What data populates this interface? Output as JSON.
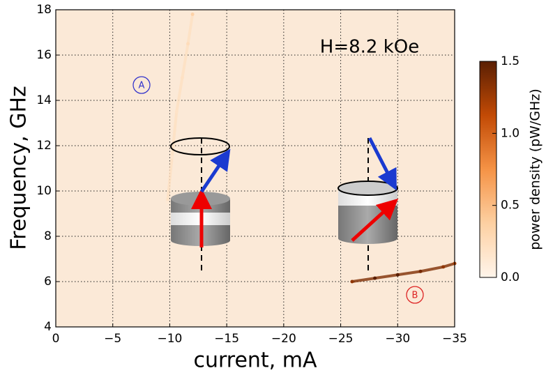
{
  "chart_data": {
    "type": "heatmap",
    "xlabel": "current, mA",
    "ylabel": "Frequency, GHz",
    "xlim": [
      0,
      -35
    ],
    "ylim": [
      4,
      18
    ],
    "xticks": [
      0,
      {
        "value": -5,
        "label": "−5"
      },
      {
        "value": -10,
        "label": "−10"
      },
      {
        "value": -15,
        "label": "−15"
      },
      {
        "value": -20,
        "label": "−20"
      },
      {
        "value": -25,
        "label": "−25"
      },
      {
        "value": -30,
        "label": "−30"
      },
      {
        "value": -35,
        "label": "−35"
      }
    ],
    "yticks": [
      4,
      6,
      8,
      10,
      12,
      14,
      16,
      18
    ],
    "grid": true,
    "colorbar": {
      "label": "power density (pW/GHz)",
      "lim": [
        0,
        1.5
      ],
      "ticks": [
        {
          "value": 0,
          "label": "0.0"
        },
        {
          "value": 0.5,
          "label": "0.5"
        },
        {
          "value": 1.0,
          "label": "1.0"
        },
        {
          "value": 1.5,
          "label": "1.5"
        }
      ],
      "colors": [
        "#fff5eb",
        "#fdd0a2",
        "#f59346",
        "#c24a05",
        "#5a1f03"
      ]
    },
    "annotations": [
      "H=8.2 kOe",
      "A",
      "B"
    ],
    "series": [
      {
        "name": "A",
        "color": "#3333cc",
        "x": [
          -12,
          -11.6,
          -11.1,
          -10.6,
          -10.2,
          -9.8
        ],
        "y": [
          17.8,
          16.5,
          15,
          13.5,
          11.5,
          9.5
        ],
        "values": [
          0.35,
          0.25,
          0.2,
          0.18,
          0.15,
          0.12
        ]
      },
      {
        "name": "B",
        "color": "#dd2222",
        "x": [
          -26,
          -28,
          -30,
          -32,
          -34,
          -35
        ],
        "y": [
          6,
          6.15,
          6.3,
          6.45,
          6.65,
          6.8
        ],
        "values": [
          1.3,
          1.5,
          1.5,
          1.4,
          1.3,
          1.2
        ]
      }
    ]
  }
}
